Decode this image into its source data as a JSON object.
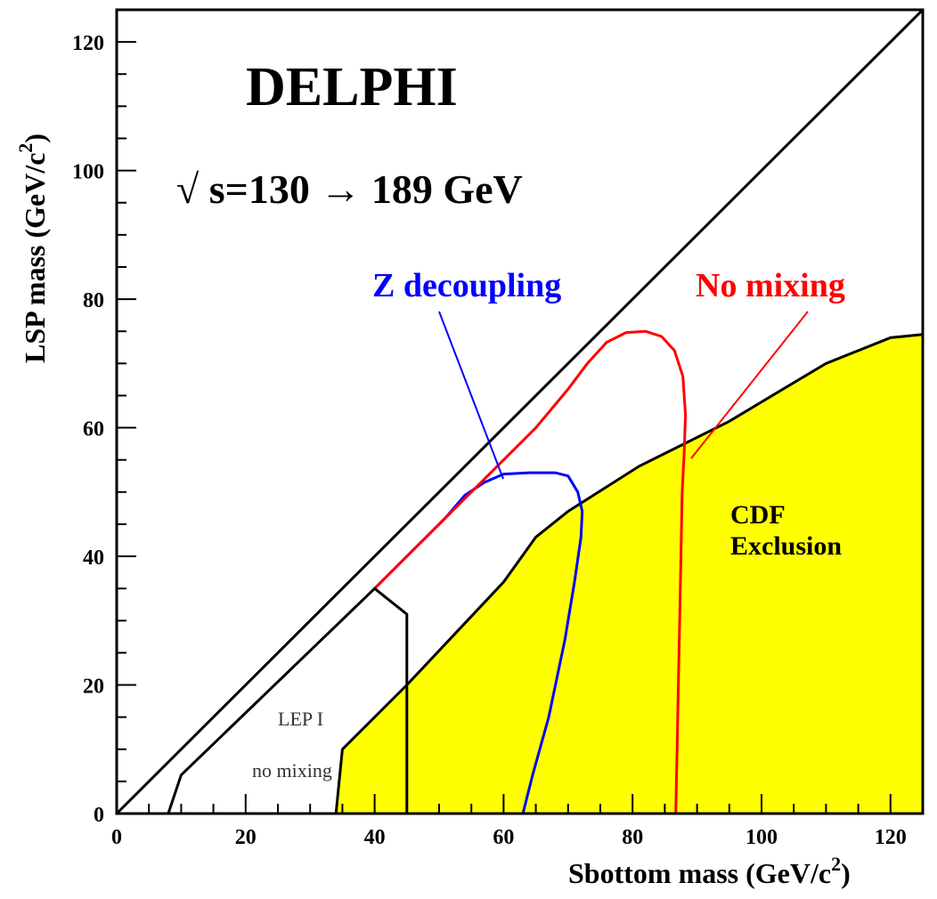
{
  "chart_data": {
    "type": "line",
    "title": "DELPHI",
    "subtitle": "√ s=130 → 189 GeV",
    "xlabel": "Sbottom mass (GeV/c",
    "xlabel_sup": "2",
    "xlabel_tail": ")",
    "ylabel": "LSP mass (GeV/c",
    "ylabel_sup": "2",
    "ylabel_tail": ")",
    "xlim": [
      0,
      125
    ],
    "ylim": [
      0,
      125
    ],
    "x_ticks": [
      "0",
      "20",
      "40",
      "60",
      "80",
      "100",
      "120"
    ],
    "y_ticks": [
      "0",
      "20",
      "40",
      "60",
      "80",
      "100",
      "120"
    ],
    "grid": false,
    "colors": {
      "cdf_fill": "#ffff00",
      "z_decoupling": "#0000ff",
      "no_mixing": "#ff0000",
      "lep": "#000000",
      "frame": "#000000"
    },
    "series": [
      {
        "name": "Z decoupling",
        "color": "#0000ff",
        "points": [
          [
            40,
            35
          ],
          [
            43,
            38
          ],
          [
            47,
            42
          ],
          [
            51,
            46
          ],
          [
            54,
            49.5
          ],
          [
            57,
            51.5
          ],
          [
            60,
            52.8
          ],
          [
            64,
            53
          ],
          [
            68,
            53
          ],
          [
            70,
            52.5
          ],
          [
            71.5,
            50
          ],
          [
            72.2,
            47
          ],
          [
            72,
            43
          ],
          [
            71,
            36
          ],
          [
            69.5,
            27
          ],
          [
            67,
            15
          ],
          [
            64.5,
            6
          ],
          [
            63,
            0
          ]
        ]
      },
      {
        "name": "No mixing",
        "color": "#ff0000",
        "points": [
          [
            40,
            35
          ],
          [
            45,
            40
          ],
          [
            50,
            45
          ],
          [
            55,
            50
          ],
          [
            60,
            55
          ],
          [
            65,
            60
          ],
          [
            70,
            66
          ],
          [
            73,
            70
          ],
          [
            76,
            73.3
          ],
          [
            79,
            74.8
          ],
          [
            82,
            75
          ],
          [
            84.5,
            74.2
          ],
          [
            86.5,
            72
          ],
          [
            87.8,
            68
          ],
          [
            88.2,
            62
          ],
          [
            88,
            56
          ],
          [
            87.7,
            50
          ],
          [
            87.5,
            40
          ],
          [
            87.3,
            30
          ],
          [
            87.1,
            20
          ],
          [
            86.9,
            10
          ],
          [
            86.7,
            0
          ]
        ]
      },
      {
        "name": "LEP I no mixing",
        "color": "#000000",
        "points": [
          [
            8,
            0
          ],
          [
            10,
            6
          ],
          [
            40,
            35
          ],
          [
            45,
            31
          ],
          [
            45,
            0
          ]
        ]
      }
    ],
    "cdf_exclusion_boundary": [
      [
        34,
        0
      ],
      [
        35,
        10
      ],
      [
        45,
        20
      ],
      [
        60,
        36
      ],
      [
        65,
        43
      ],
      [
        70,
        47
      ],
      [
        81,
        54
      ],
      [
        95,
        61
      ],
      [
        110,
        70
      ],
      [
        120,
        74
      ],
      [
        125,
        74.5
      ]
    ],
    "diagonal": [
      [
        0,
        0
      ],
      [
        125,
        125
      ]
    ],
    "annotations": {
      "z_decoupling": "Z decoupling",
      "no_mixing": "No mixing",
      "cdf_line1": "CDF",
      "cdf_line2": "Exclusion",
      "lep_line1": "LEP I",
      "lep_line2": "no mixing"
    }
  }
}
